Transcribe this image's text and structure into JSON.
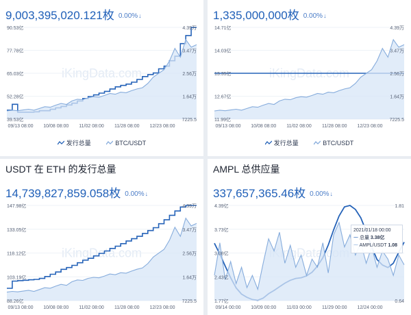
{
  "colors": {
    "primary": "#2462b8",
    "price": "#86acdc",
    "area": "#d7e5f7",
    "text_blue": "#1f5fb8"
  },
  "watermark": "iKingData.com",
  "panels": [
    {
      "title": "",
      "supply": "9,003,395,020.121枚",
      "change": "0.00%",
      "change_arrow": "↓",
      "legend": [
        "发行总量",
        "BTC/USDT"
      ],
      "chart_data": {
        "type": "line",
        "x_ticks": [
          "09/13 08:00",
          "10/08 08:00",
          "11/02 08:00",
          "11/28 08:00",
          "12/23 08:00"
        ],
        "y_left_ticks": [
          "90.53亿",
          "77.78亿",
          "65.03亿",
          "52.28亿",
          "39.53亿"
        ],
        "y_right_ticks": [
          "4.39万",
          "3.47万",
          "2.56万",
          "1.64万",
          "7225.5"
        ],
        "y_left_range": [
          39.53,
          90.53
        ],
        "y_right_range": [
          0.72255,
          4.39
        ],
        "series": [
          {
            "name": "发行总量",
            "axis": "left",
            "style": "step",
            "values": [
              44.5,
              47.8,
              43.4,
              43.4,
              43.4,
              43.6,
              44.2,
              44.2,
              45.0,
              45.8,
              46.6,
              47.4,
              48.4,
              49.6,
              51.0,
              52.1,
              53.0,
              54.0,
              55.0,
              56.3,
              57.5,
              58.3,
              59.0,
              60.1,
              61.6,
              63.2,
              64.3,
              65.2,
              67.5,
              69.0,
              72.0,
              74.5,
              81.5,
              86.0,
              90.5,
              90.5
            ]
          },
          {
            "name": "BTC/USDT",
            "axis": "right",
            "style": "area",
            "values": [
              1.05,
              1.08,
              1.06,
              1.09,
              1.12,
              1.08,
              1.15,
              1.22,
              1.2,
              1.28,
              1.35,
              1.31,
              1.45,
              1.52,
              1.5,
              1.58,
              1.62,
              1.6,
              1.67,
              1.75,
              1.72,
              1.8,
              1.78,
              1.86,
              1.93,
              1.98,
              2.15,
              2.4,
              2.55,
              2.7,
              3.05,
              3.55,
              3.2,
              3.9,
              3.6,
              3.7
            ]
          }
        ]
      }
    },
    {
      "title": "",
      "supply": "1,335,000,000枚",
      "change": "0.00%",
      "change_arrow": "↓",
      "legend": [
        "发行总量",
        "BTC/USDT"
      ],
      "chart_data": {
        "type": "line",
        "x_ticks": [
          "09/13 08:00",
          "10/08 08:00",
          "11/02 08:00",
          "11/28 08:00",
          "12/23 08:00"
        ],
        "y_left_ticks": [
          "14.71亿",
          "14.03亿",
          "13.35亿",
          "12.67亿",
          "11.99亿"
        ],
        "y_right_ticks": [
          "4.39万",
          "3.47万",
          "2.56万",
          "1.64万",
          "7225.5"
        ],
        "y_left_range": [
          11.99,
          14.71
        ],
        "y_right_range": [
          0.72255,
          4.39
        ],
        "series": [
          {
            "name": "发行总量",
            "axis": "left",
            "style": "flat",
            "values": [
              13.35,
              13.35
            ]
          },
          {
            "name": "BTC/USDT",
            "axis": "right",
            "style": "area",
            "values": [
              1.05,
              1.08,
              1.06,
              1.09,
              1.12,
              1.08,
              1.15,
              1.22,
              1.2,
              1.28,
              1.35,
              1.31,
              1.45,
              1.52,
              1.5,
              1.58,
              1.62,
              1.6,
              1.67,
              1.75,
              1.72,
              1.8,
              1.78,
              1.86,
              1.93,
              1.98,
              2.15,
              2.4,
              2.55,
              2.7,
              3.05,
              3.55,
              3.2,
              3.9,
              3.6,
              3.7
            ]
          }
        ]
      }
    },
    {
      "title": "USDT 在 ETH 的发行总量",
      "supply": "14,739,827,859.058枚",
      "change": "0.00%",
      "change_arrow": "↓",
      "legend": [],
      "chart_data": {
        "type": "line",
        "x_ticks": [
          "09/13 08:00",
          "10/08 08:00",
          "11/02 08:00",
          "11/28 08:00",
          "12/23 08:00"
        ],
        "y_left_ticks": [
          "147.98亿",
          "133.05亿",
          "118.12亿",
          "103.19亿",
          "88.26亿"
        ],
        "y_right_ticks": [
          "4.39万",
          "3.47万",
          "2.56万",
          "1.64万",
          "7225.5"
        ],
        "y_left_range": [
          88.26,
          147.98
        ],
        "y_right_range": [
          0.72255,
          4.39
        ],
        "series": [
          {
            "name": "发行总量",
            "axis": "left",
            "style": "step",
            "values": [
              96.0,
              100.5,
              100.8,
              101.0,
              101.3,
              101.6,
              102.2,
              103.4,
              104.8,
              106.2,
              107.9,
              109.0,
              110.4,
              112.0,
              113.6,
              114.8,
              116.3,
              117.9,
              119.4,
              121.0,
              122.4,
              124.0,
              125.7,
              127.1,
              128.6,
              130.4,
              132.2,
              134.0,
              136.5,
              139.0,
              141.8,
              144.5,
              147.0,
              147.98,
              147.98,
              147.98
            ]
          },
          {
            "name": "BTC/USDT",
            "axis": "right",
            "style": "area",
            "values": [
              1.05,
              1.08,
              1.06,
              1.09,
              1.12,
              1.08,
              1.15,
              1.22,
              1.2,
              1.28,
              1.35,
              1.31,
              1.45,
              1.52,
              1.5,
              1.58,
              1.62,
              1.6,
              1.67,
              1.75,
              1.72,
              1.8,
              1.78,
              1.86,
              1.93,
              1.98,
              2.15,
              2.4,
              2.55,
              2.7,
              3.05,
              3.55,
              3.2,
              3.9,
              3.6,
              3.7
            ]
          }
        ]
      }
    },
    {
      "title": "AMPL 总供应量",
      "supply": "337,657,365.46枚",
      "change": "0.00%",
      "change_arrow": "↓",
      "legend": [],
      "tooltip": {
        "date": "2021/01/18 00:00",
        "supply_label": "总量",
        "supply_value": "3.38亿",
        "price_label": "AMPL/USDT",
        "price_value": "1.08"
      },
      "chart_data": {
        "type": "line",
        "x_ticks": [
          "09/14 00:00",
          "10/09 00:00",
          "11/03 00:00",
          "11/29 00:00",
          "12/24 00:00"
        ],
        "y_left_ticks": [
          "4.39亿",
          "3.73亿",
          "3.08亿",
          "2.43亿",
          "1.77亿"
        ],
        "y_right_ticks": [
          "1.81",
          "",
          "",
          "",
          "0.64"
        ],
        "y_left_range": [
          1.77,
          4.39
        ],
        "y_right_range": [
          0.64,
          1.81
        ],
        "series": [
          {
            "name": "总量",
            "axis": "left",
            "style": "smooth",
            "values": [
              3.35,
              3.05,
              2.72,
              2.4,
              2.12,
              1.95,
              1.86,
              1.8,
              1.78,
              1.84,
              1.96,
              2.05,
              2.15,
              2.25,
              2.33,
              2.38,
              2.4,
              2.45,
              2.55,
              2.72,
              2.95,
              3.3,
              3.72,
              4.1,
              4.35,
              4.39,
              4.28,
              4.05,
              3.68,
              3.25,
              2.9,
              2.75,
              2.68,
              2.8,
              3.1,
              3.38
            ]
          },
          {
            "name": "AMPL/USDT",
            "axis": "right",
            "style": "area",
            "values": [
              0.95,
              1.35,
              0.9,
              1.12,
              0.85,
              1.05,
              0.8,
              0.95,
              0.78,
              1.1,
              1.4,
              1.25,
              1.48,
              1.1,
              1.32,
              1.05,
              1.2,
              0.95,
              1.15,
              1.05,
              1.35,
              0.98,
              1.45,
              1.6,
              1.3,
              1.45,
              1.2,
              1.35,
              1.1,
              1.3,
              1.05,
              1.25,
              1.15,
              0.95,
              1.2,
              1.08
            ]
          }
        ]
      }
    }
  ]
}
